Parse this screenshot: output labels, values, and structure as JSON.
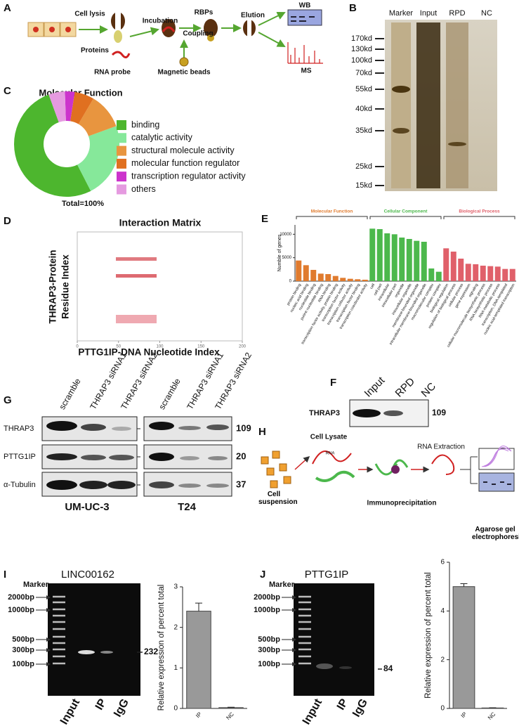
{
  "panel_labels": [
    "A",
    "B",
    "C",
    "D",
    "E",
    "F",
    "G",
    "H",
    "I",
    "J"
  ],
  "a": {
    "steps": [
      "Cell lysis",
      "Incubation",
      "RBPs",
      "Coupling",
      "Elution",
      "Proteins",
      "RNA probe",
      "Magnetic beads"
    ],
    "outputs": [
      "WB",
      "MS"
    ]
  },
  "b": {
    "lanes": [
      "Marker",
      "Input",
      "RPD",
      "NC"
    ],
    "markers": [
      "170kd",
      "130kd",
      "100kd",
      "70kd",
      "55kd",
      "40kd",
      "35kd",
      "25kd",
      "15kd"
    ]
  },
  "f": {
    "lanes": [
      "Input",
      "RPD",
      "NC"
    ],
    "protein": "THRAP3",
    "size": 109
  },
  "g": {
    "lanes": [
      "scramble",
      "THRAP3 siRNA1",
      "THRAP3 siRNA2"
    ],
    "rows": [
      "THRAP3",
      "PTTG1IP",
      "α-Tubulin"
    ],
    "sizes": [
      109,
      20,
      37
    ],
    "cells": [
      "UM-UC-3",
      "T24"
    ]
  },
  "h": {
    "labels": [
      "Cell Lysate",
      "RNA",
      "Cell suspension",
      "Immunoprecipitation",
      "RNA Extraction",
      "Agarose gel electrophoresis"
    ]
  },
  "i": {
    "gel_title": "LINC00162",
    "marker": "Marker",
    "ladder": [
      "2000bp",
      "1000bp",
      "500bp",
      "300bp",
      "100bp"
    ],
    "lanes": [
      "Input",
      "IP",
      "IgG"
    ],
    "band": 232
  },
  "j": {
    "gel_title": "PTTG1IP",
    "marker": "Marker",
    "ladder": [
      "2000bp",
      "1000bp",
      "500bp",
      "300bp",
      "100bp"
    ],
    "lanes": [
      "Input",
      "IP",
      "IgG"
    ],
    "band": 84
  },
  "chart_data": [
    {
      "type": "pie",
      "title": "Molecular Function",
      "note": "Total=100%",
      "categories": [
        "binding",
        "catalytic activity",
        "structural molecule activity",
        "molecular function regulator",
        "transcription regulator activity",
        "others"
      ],
      "values": [
        52,
        23,
        11,
        6,
        3,
        5
      ],
      "colors": [
        "#4db62e",
        "#86e89a",
        "#e8953f",
        "#e07020",
        "#cc33cc",
        "#e59ae0"
      ]
    },
    {
      "type": "matrix",
      "title": "Interaction Matrix",
      "y_label": [
        "THRAP3-Protein",
        "Residue Index"
      ],
      "x_label": "PTTG1IP-DNA Nucleotide Index",
      "xlim": [
        0,
        200
      ],
      "xticks": [
        0,
        50,
        100,
        150,
        200
      ]
    },
    {
      "type": "grouped-bar",
      "y_label": "Numble of genes",
      "ylim": [
        0,
        12000
      ],
      "yticks": [
        0,
        5000,
        10000
      ],
      "groups": [
        {
          "name": "Molecular Function",
          "color": "#e07b2e",
          "categories": [
            "protein binding",
            "nucleic acid binding",
            "nucleotide binding",
            "purine nucleotide binding",
            "RNA binding",
            "transcription factor activity, protein binding",
            "transcription factor activity",
            "transcription cofactor activity",
            "transcription factor binding",
            "transcription coactivator activity"
          ],
          "values": [
            4400,
            3400,
            2400,
            1600,
            1500,
            1100,
            700,
            500,
            400,
            300
          ]
        },
        {
          "name": "Cellular Component",
          "color": "#4cb84c",
          "categories": [
            "cell",
            "cell part",
            "intracellular",
            "intracellular part",
            "organelle",
            "intracellular organelle",
            "membrane-bounded organelle",
            "intracellular membrane-bounded organelle",
            "macromolecular complex",
            "protein complex"
          ],
          "values": [
            11200,
            11100,
            10200,
            10000,
            9300,
            9000,
            8600,
            8400,
            2700,
            2000
          ]
        },
        {
          "name": "Biological Process",
          "color": "#e0606a",
          "categories": [
            "biological regulation",
            "regulation of biological process",
            "cellular process",
            "gene expression",
            "signaling",
            "cellular macromolecule biosynthetic process",
            "RNA biosynthetic process",
            "RNA metabolic process",
            "transcription, DNA-templated",
            "nucleic acid-templated transcription"
          ],
          "values": [
            7000,
            6300,
            4800,
            3700,
            3600,
            3300,
            3200,
            3100,
            2600,
            2600
          ]
        }
      ]
    },
    {
      "type": "bar",
      "y_label": "Relative expression of percent total",
      "categories": [
        "IP",
        "NC"
      ],
      "values": [
        2.4,
        0.02
      ],
      "errors": [
        0.2,
        0.01
      ],
      "color": "#999999",
      "ylim": [
        0,
        3
      ],
      "yticks": [
        0,
        1,
        2,
        3
      ]
    },
    {
      "type": "bar",
      "y_label": "Relative expression of percent total",
      "categories": [
        "IP",
        "NC"
      ],
      "values": [
        5.0,
        0.02
      ],
      "errors": [
        0.12,
        0.01
      ],
      "color": "#999999",
      "ylim": [
        0,
        6
      ],
      "yticks": [
        0,
        2,
        4,
        6
      ]
    }
  ]
}
